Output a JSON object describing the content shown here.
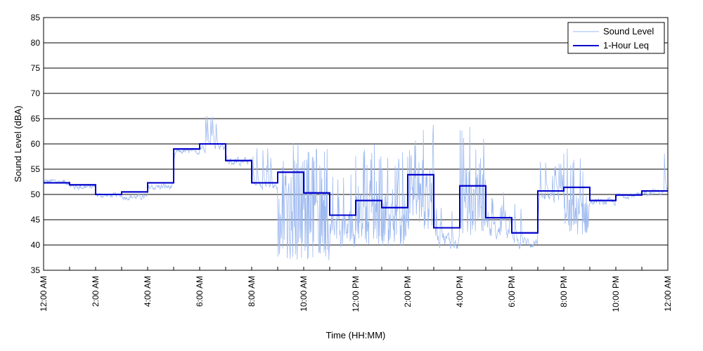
{
  "chart_data": {
    "type": "line",
    "title": "",
    "xlabel": "Time (HH:MM)",
    "ylabel": "Sound Level (dBA)",
    "ylim": [
      35,
      85
    ],
    "yticks": [
      35,
      40,
      45,
      50,
      55,
      60,
      65,
      70,
      75,
      80,
      85
    ],
    "xlim_hours": [
      0,
      24
    ],
    "x_tick_labels": [
      "12:00 AM",
      "2:00 AM",
      "4:00 AM",
      "6:00 AM",
      "8:00 AM",
      "10:00 AM",
      "12:00 PM",
      "2:00 PM",
      "4:00 PM",
      "6:00 PM",
      "8:00 PM",
      "10:00 PM",
      "12:00 AM"
    ],
    "grid": true,
    "legend_position": "top-right",
    "series": [
      {
        "name": "Sound Level",
        "color": "#9db9f0",
        "description": "continuous noisy trace",
        "hourly_profile": [
          {
            "hour": 0,
            "mean": 52.5,
            "spread": 1.2,
            "spikes": 0
          },
          {
            "hour": 1,
            "mean": 51.5,
            "spread": 1.0,
            "spikes": 0
          },
          {
            "hour": 2,
            "mean": 49.8,
            "spread": 0.9,
            "spikes": 0
          },
          {
            "hour": 3,
            "mean": 49.5,
            "spread": 1.0,
            "spikes": 0
          },
          {
            "hour": 4,
            "mean": 51.5,
            "spread": 1.3,
            "spikes": 0
          },
          {
            "hour": 5,
            "mean": 58.5,
            "spread": 1.0,
            "spikes": 0
          },
          {
            "hour": 6,
            "mean": 59.5,
            "spread": 1.5,
            "spikes": 0.1
          },
          {
            "hour": 7,
            "mean": 56.5,
            "spread": 1.5,
            "spikes": 0
          },
          {
            "hour": 8,
            "mean": 51.5,
            "spread": 1.5,
            "spikes": 0.1
          },
          {
            "hour": 9,
            "mean": 44.0,
            "spread": 7.0,
            "spikes": 0.3
          },
          {
            "hour": 10,
            "mean": 43.0,
            "spread": 6.0,
            "spikes": 0.3
          },
          {
            "hour": 11,
            "mean": 43.0,
            "spread": 3.5,
            "spikes": 0.15
          },
          {
            "hour": 12,
            "mean": 45.0,
            "spread": 5.0,
            "spikes": 0.2
          },
          {
            "hour": 13,
            "mean": 44.0,
            "spread": 4.5,
            "spikes": 0.2
          },
          {
            "hour": 14,
            "mean": 48.5,
            "spread": 5.5,
            "spikes": 0.3
          },
          {
            "hour": 15,
            "mean": 41.0,
            "spread": 3.0,
            "spikes": 0.1
          },
          {
            "hour": 16,
            "mean": 48.0,
            "spread": 6.0,
            "spikes": 0.3
          },
          {
            "hour": 17,
            "mean": 42.5,
            "spread": 3.0,
            "spikes": 0.1
          },
          {
            "hour": 18,
            "mean": 40.5,
            "spread": 2.0,
            "spikes": 0.05
          },
          {
            "hour": 19,
            "mean": 49.0,
            "spread": 2.5,
            "spikes": 0.1
          },
          {
            "hour": 20,
            "mean": 46.0,
            "spread": 4.0,
            "spikes": 0.15
          },
          {
            "hour": 21,
            "mean": 48.5,
            "spread": 1.2,
            "spikes": 0
          },
          {
            "hour": 22,
            "mean": 49.8,
            "spread": 1.0,
            "spikes": 0
          },
          {
            "hour": 23,
            "mean": 50.5,
            "spread": 1.3,
            "spikes": 0.05
          }
        ]
      },
      {
        "name": "1-Hour Leq",
        "color": "#0000cc",
        "description": "step function, one value per hour",
        "hours": [
          0,
          1,
          2,
          3,
          4,
          5,
          6,
          7,
          8,
          9,
          10,
          11,
          12,
          13,
          14,
          15,
          16,
          17,
          18,
          19,
          20,
          21,
          22,
          23
        ],
        "values": [
          52.3,
          51.9,
          50.0,
          50.5,
          52.3,
          59.0,
          60.0,
          56.7,
          52.3,
          54.4,
          50.3,
          45.9,
          48.8,
          47.4,
          53.9,
          43.4,
          51.7,
          45.4,
          42.4,
          50.7,
          51.4,
          48.8,
          49.9,
          50.7
        ]
      }
    ]
  }
}
